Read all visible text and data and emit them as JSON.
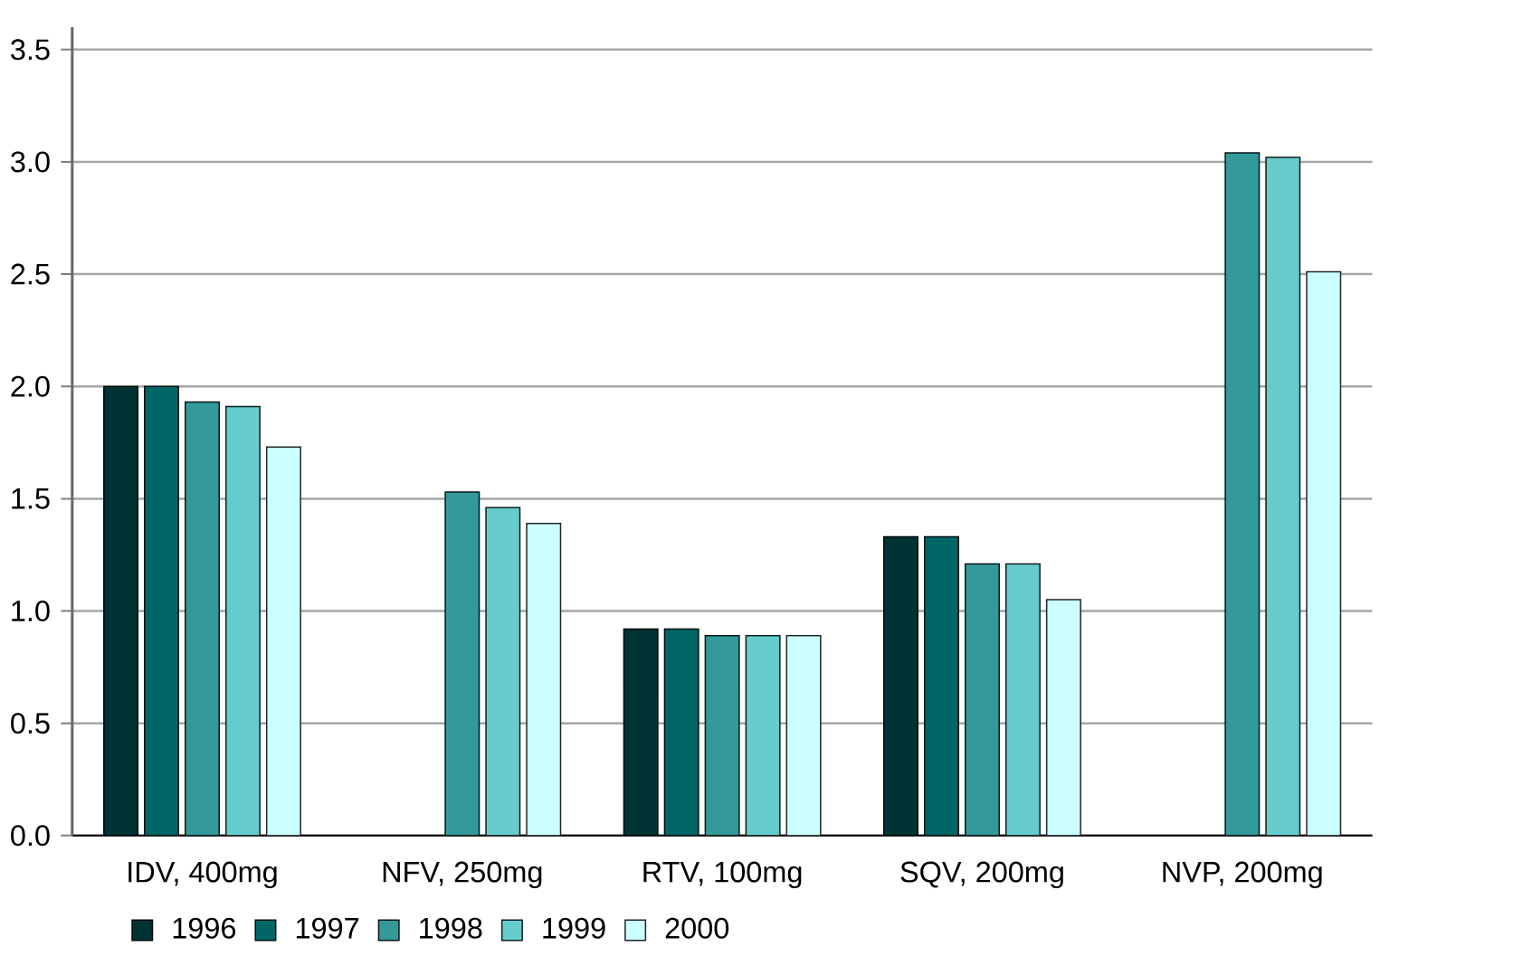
{
  "chart_data": {
    "type": "bar",
    "categories": [
      "IDV, 400mg",
      "NFV, 250mg",
      "RTV, 100mg",
      "SQV, 200mg",
      "NVP, 200mg"
    ],
    "series": [
      {
        "name": "1996",
        "color": "#003333",
        "values": [
          2.0,
          null,
          0.92,
          1.33,
          null
        ]
      },
      {
        "name": "1997",
        "color": "#006666",
        "values": [
          2.0,
          null,
          0.92,
          1.33,
          null
        ]
      },
      {
        "name": "1998",
        "color": "#339999",
        "values": [
          1.93,
          1.53,
          0.89,
          1.21,
          3.04
        ]
      },
      {
        "name": "1999",
        "color": "#66cccc",
        "values": [
          1.91,
          1.46,
          0.89,
          1.21,
          3.02
        ]
      },
      {
        "name": "2000",
        "color": "#ccffff",
        "values": [
          1.73,
          1.39,
          0.89,
          1.05,
          2.51
        ]
      }
    ],
    "ylim": [
      0,
      3.6
    ],
    "yticks": [
      {
        "value": 0,
        "label": "0.0"
      },
      {
        "value": 0.5,
        "label": "0.5"
      },
      {
        "value": 1,
        "label": "1.0"
      },
      {
        "value": 1.5,
        "label": "1.5"
      },
      {
        "value": 2,
        "label": "2.0"
      },
      {
        "value": 2.5,
        "label": "2.5"
      },
      {
        "value": 3,
        "label": "3.0"
      },
      {
        "value": 3.5,
        "label": "3.5"
      }
    ],
    "grid": "y",
    "legend": "bottom"
  }
}
